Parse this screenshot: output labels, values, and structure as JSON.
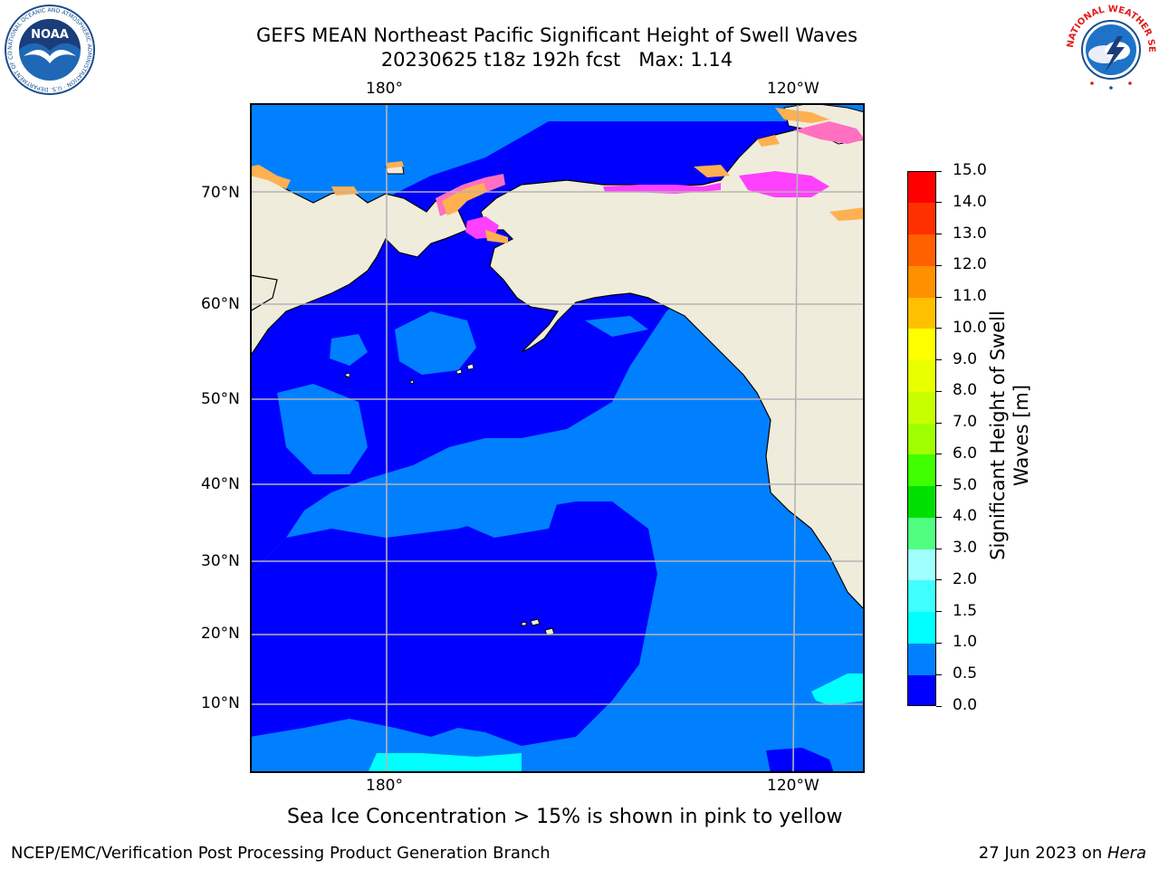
{
  "title": {
    "line1": "GEFS MEAN Northeast Pacific Significant Height of Swell Waves",
    "line2": "20230625 t18z 192h fcst   Max: 1.14"
  },
  "map": {
    "lon_labels_top": [
      "180°",
      "120°W"
    ],
    "lon_labels_bottom": [
      "180°",
      "120°W"
    ],
    "lat_labels": [
      "70°N",
      "60°N",
      "50°N",
      "40°N",
      "30°N",
      "20°N",
      "10°N"
    ],
    "land_color": "#efecdc",
    "grid_color": "#b4b4b4"
  },
  "colorbar": {
    "label_line1": "Significant Height of Swell",
    "label_line2": "Waves [m]",
    "ticks": [
      "0.0",
      "0.5",
      "1.0",
      "1.5",
      "2.0",
      "3.0",
      "4.0",
      "5.0",
      "6.0",
      "7.0",
      "8.0",
      "9.0",
      "10.0",
      "11.0",
      "12.0",
      "13.0",
      "14.0",
      "15.0"
    ],
    "colors": [
      "#0000ff",
      "#0080ff",
      "#00ffff",
      "#40ffff",
      "#a0ffff",
      "#50ff80",
      "#00e000",
      "#40ff00",
      "#a0ff00",
      "#c8ff00",
      "#e8ff00",
      "#ffff00",
      "#ffc000",
      "#ff9000",
      "#ff6000",
      "#ff3000",
      "#ff0000"
    ]
  },
  "legend_note": "Sea Ice Concentration > 15% is shown in pink to yellow",
  "logos": {
    "noaa_text": "NOAA",
    "noaa_ring": "NATIONAL OCEANIC AND ATMOSPHERIC ADMINISTRATION · U.S. DEPARTMENT OF COMMERCE",
    "nws_ring": "NATIONAL WEATHER SERVICE"
  },
  "footer": {
    "left": "NCEP/EMC/Verification Post Processing Product Generation Branch",
    "right_prefix": "27 Jun 2023 on ",
    "right_host": "Hera"
  }
}
